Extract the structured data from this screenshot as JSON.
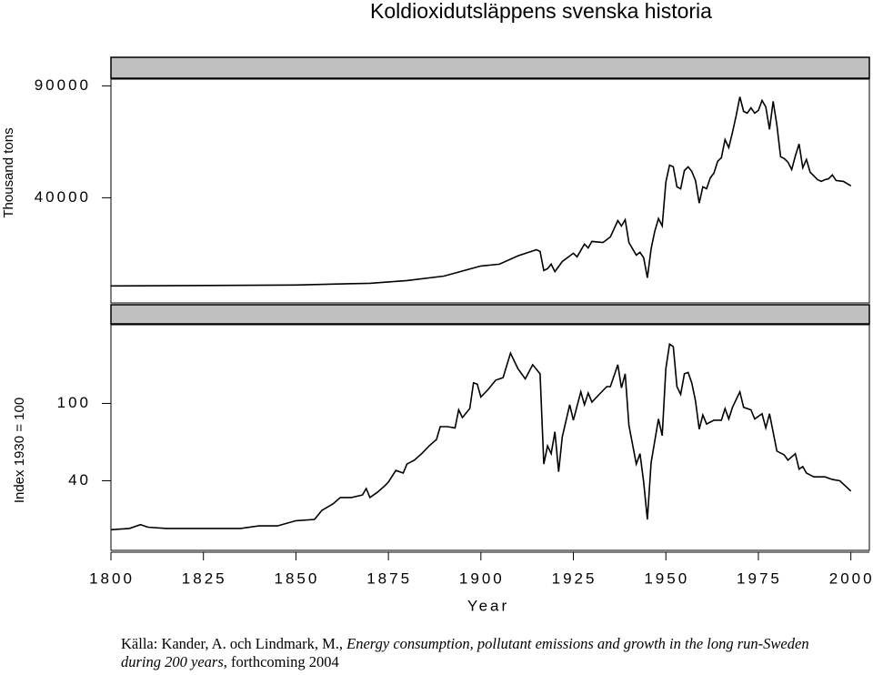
{
  "title": "Koldioxidutsläppens svenska historia",
  "source": {
    "lead": "Källa: Kander, A. och Lindmark, M.,",
    "work": "Energy consumption, pollutant emissions and growth in the long run-Sweden during 200 years",
    "tail": ", forthcoming 2004"
  },
  "chart_data": [
    {
      "type": "line",
      "ylabel": "Thousand tons",
      "color": "#000000",
      "ylim": [
        -7000,
        93000
      ],
      "yticks": [
        40000,
        90000
      ],
      "xlim": [
        1800,
        2005
      ],
      "x": [
        1800,
        1850,
        1860,
        1870,
        1880,
        1890,
        1900,
        1905,
        1910,
        1915,
        1916,
        1917,
        1918,
        1919,
        1920,
        1922,
        1925,
        1926,
        1928,
        1929,
        1930,
        1933,
        1935,
        1937,
        1938,
        1939,
        1940,
        1942,
        1943,
        1944,
        1945,
        1946,
        1947,
        1948,
        1949,
        1950,
        1951,
        1952,
        1953,
        1954,
        1955,
        1956,
        1957,
        1958,
        1959,
        1960,
        1961,
        1962,
        1963,
        1964,
        1965,
        1966,
        1967,
        1968,
        1969,
        1970,
        1971,
        1972,
        1973,
        1974,
        1975,
        1976,
        1977,
        1978,
        1979,
        1980,
        1981,
        1982,
        1983,
        1984,
        1985,
        1986,
        1987,
        1988,
        1989,
        1990,
        1991,
        1992,
        1993,
        1994,
        1995,
        1996,
        1998,
        2000
      ],
      "values": [
        600,
        1000,
        1400,
        1800,
        3000,
        5000,
        9500,
        10300,
        14000,
        16800,
        16000,
        7500,
        8300,
        10300,
        7000,
        11500,
        15200,
        13600,
        19300,
        17600,
        20500,
        20000,
        22500,
        29800,
        27400,
        30200,
        20000,
        14400,
        15600,
        13200,
        4200,
        17200,
        25000,
        30700,
        27400,
        47000,
        54600,
        53800,
        44900,
        44000,
        52200,
        53800,
        51800,
        47700,
        37600,
        44900,
        44000,
        48900,
        51000,
        56300,
        57900,
        66000,
        62400,
        69300,
        76600,
        85100,
        78600,
        77800,
        80200,
        77800,
        79000,
        83500,
        80600,
        70500,
        83100,
        72500,
        58300,
        57500,
        55900,
        52600,
        58700,
        64000,
        53400,
        57100,
        51400,
        49800,
        48100,
        47300,
        48100,
        48500,
        50200,
        47700,
        47300,
        45300
      ]
    },
    {
      "type": "line",
      "ylabel": "Index 1930 = 100",
      "xlabel": "Year",
      "color": "#000000",
      "ylim": [
        -14,
        161
      ],
      "yticks": [
        40,
        100
      ],
      "xlim": [
        1800,
        2005
      ],
      "xticks": [
        1800,
        1825,
        1850,
        1875,
        1900,
        1925,
        1950,
        1975,
        2000
      ],
      "x": [
        1800,
        1805,
        1808,
        1810,
        1815,
        1820,
        1830,
        1835,
        1840,
        1845,
        1850,
        1855,
        1857,
        1860,
        1862,
        1865,
        1868,
        1869,
        1870,
        1872,
        1874,
        1875,
        1877,
        1879,
        1880,
        1882,
        1884,
        1886,
        1888,
        1889,
        1891,
        1893,
        1894,
        1895,
        1897,
        1898,
        1899,
        1900,
        1902,
        1904,
        1906,
        1908,
        1910,
        1912,
        1914,
        1916,
        1917,
        1918,
        1919,
        1920,
        1921,
        1922,
        1924,
        1925,
        1927,
        1928,
        1929,
        1930,
        1932,
        1934,
        1935,
        1937,
        1938,
        1939,
        1940,
        1942,
        1943,
        1944,
        1945,
        1946,
        1948,
        1949,
        1950,
        1951,
        1952,
        1953,
        1954,
        1955,
        1956,
        1957,
        1958,
        1959,
        1960,
        1961,
        1963,
        1965,
        1966,
        1967,
        1968,
        1970,
        1971,
        1973,
        1974,
        1976,
        1977,
        1978,
        1980,
        1982,
        1983,
        1985,
        1986,
        1987,
        1988,
        1990,
        1993,
        1995,
        1997,
        2000
      ],
      "values": [
        2,
        3,
        6,
        4,
        3,
        3,
        3,
        3,
        5,
        5,
        9,
        10,
        17,
        22,
        27,
        27,
        29,
        34,
        27,
        31,
        36,
        39,
        48,
        46,
        53,
        56,
        61,
        67,
        72,
        82,
        82,
        81,
        95,
        89,
        96,
        116,
        115,
        105,
        111,
        118,
        120,
        139,
        127,
        119,
        130,
        123,
        53,
        67,
        61,
        78,
        47,
        74,
        99,
        87,
        109,
        99,
        108,
        101,
        107,
        113,
        113,
        130,
        112,
        123,
        83,
        53,
        61,
        39,
        10,
        54,
        88,
        75,
        127,
        146,
        144,
        113,
        107,
        123,
        124,
        116,
        102,
        80,
        91,
        84,
        87,
        87,
        96,
        88,
        97,
        109,
        97,
        95,
        88,
        92,
        81,
        92,
        63,
        60,
        56,
        61,
        49,
        51,
        46,
        43,
        43,
        41,
        40,
        32
      ]
    }
  ]
}
